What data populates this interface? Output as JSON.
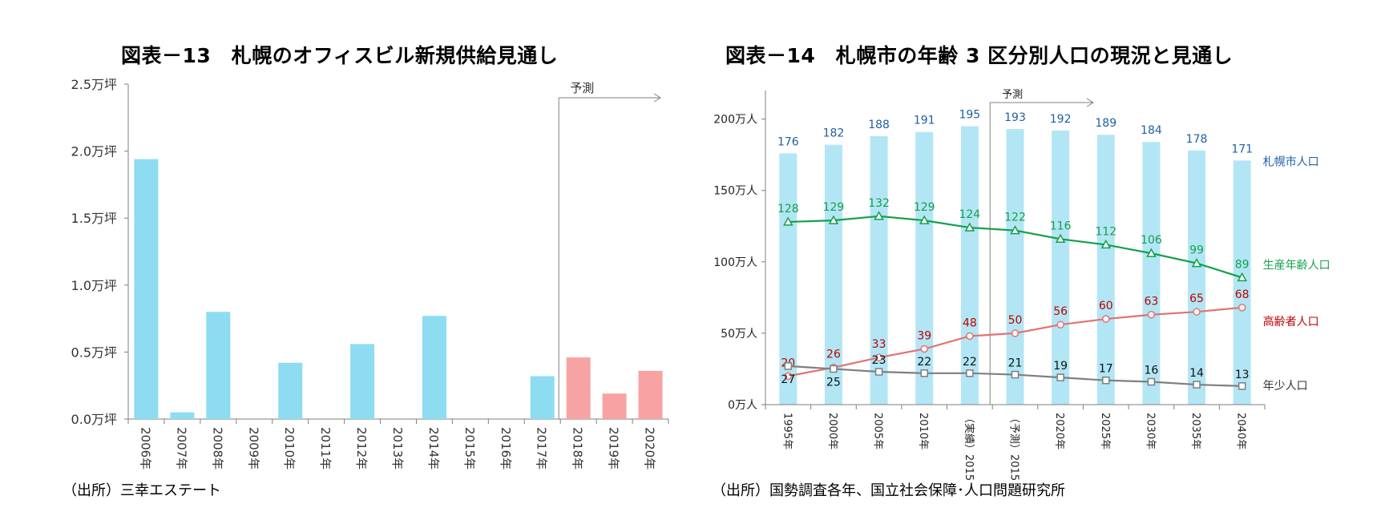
{
  "titles": {
    "left": "図表－13　札幌のオフィスビル新規供給見通し",
    "right": "図表－14　札幌市の年齢 3 区分別人口の現況と見通し"
  },
  "sources": {
    "left": "（出所）三幸エステート",
    "right": "（出所）国勢調査各年、国立社会保障･人口問題研究所"
  },
  "colors": {
    "actual_bar": "#8ddcf2",
    "forecast_bar": "#f7a3a3",
    "pop_bar": "#b3e6f5",
    "total": "#1f5fa6",
    "working": "#14a04a",
    "elderly": "#e07373",
    "elderly_label": "#c00000",
    "youth": "#7f7f7f",
    "axis": "#7f7f7f"
  },
  "chart_data": [
    {
      "type": "bar",
      "title": "図表－13　札幌のオフィスビル新規供給見通し",
      "categories": [
        "2006年",
        "2007年",
        "2008年",
        "2009年",
        "2010年",
        "2011年",
        "2012年",
        "2013年",
        "2014年",
        "2015年",
        "2016年",
        "2017年",
        "2018年",
        "2019年",
        "2020年"
      ],
      "values": [
        1.94,
        0.05,
        0.8,
        0,
        0.42,
        0,
        0.56,
        0,
        0.77,
        0,
        0,
        0.32,
        0.46,
        0.19,
        0.36
      ],
      "forecast_from_index": 12,
      "forecast_label": "予測",
      "ylim": [
        0,
        2.5
      ],
      "yticks": [
        {
          "v": 0,
          "label": "0.0万坪"
        },
        {
          "v": 0.5,
          "label": "0.5万坪"
        },
        {
          "v": 1.0,
          "label": "1.0万坪"
        },
        {
          "v": 1.5,
          "label": "1.5万坪"
        },
        {
          "v": 2.0,
          "label": "2.0万坪"
        },
        {
          "v": 2.5,
          "label": "2.5万坪"
        }
      ],
      "grid": false,
      "legend": "none"
    },
    {
      "type": "bar+line",
      "title": "図表－14　札幌市の年齢 3 区分別人口の現況と見通し",
      "categories": [
        "1995年",
        "2000年",
        "2005年",
        "2010年",
        "（実績）2015年",
        "（予測）2015年",
        "2020年",
        "2025年",
        "2030年",
        "2035年",
        "2040年"
      ],
      "forecast_from_index": 5,
      "forecast_label": "予測",
      "ylim": [
        0,
        220
      ],
      "yticks": [
        {
          "v": 0,
          "label": "0万人"
        },
        {
          "v": 50,
          "label": "50万人"
        },
        {
          "v": 100,
          "label": "100万人"
        },
        {
          "v": 150,
          "label": "150万人"
        },
        {
          "v": 200,
          "label": "200万人"
        }
      ],
      "series": [
        {
          "name": "札幌市人口",
          "kind": "bar",
          "values": [
            176,
            182,
            188,
            191,
            195,
            193,
            192,
            189,
            184,
            178,
            171
          ]
        },
        {
          "name": "生産年齢人口",
          "kind": "line",
          "marker": "triangle",
          "values": [
            128,
            129,
            132,
            129,
            124,
            122,
            116,
            112,
            106,
            99,
            89
          ]
        },
        {
          "name": "高齢者人口",
          "kind": "line",
          "marker": "circle",
          "values": [
            20,
            26,
            33,
            39,
            48,
            50,
            56,
            60,
            63,
            65,
            68
          ]
        },
        {
          "name": "年少人口",
          "kind": "line",
          "marker": "square",
          "values": [
            27,
            25,
            23,
            22,
            22,
            21,
            19,
            17,
            16,
            14,
            13
          ]
        }
      ],
      "grid": false,
      "legend": "right, at line ends"
    }
  ]
}
